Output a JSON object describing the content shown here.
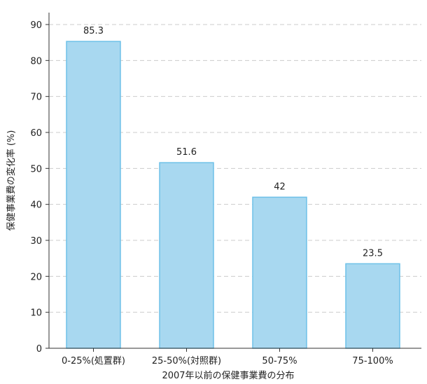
{
  "chart_data": {
    "type": "bar",
    "categories": [
      "0-25%(処置群)",
      "25-50%(対照群)",
      "50-75%",
      "75-100%"
    ],
    "values": [
      85.3,
      51.6,
      42,
      23.5
    ],
    "data_labels": [
      "85.3",
      "51.6",
      "42",
      "23.5"
    ],
    "title": "",
    "xlabel": "2007年以前の保健事業費の分布",
    "ylabel": "保健事業費の変化率 (%)",
    "ylim": [
      0,
      90
    ],
    "yticks": [
      0,
      10,
      20,
      30,
      40,
      50,
      60,
      70,
      80,
      90
    ],
    "grid": true,
    "bar_color": "#a8d8f0",
    "bar_edge_color": "#6ec1e8"
  }
}
